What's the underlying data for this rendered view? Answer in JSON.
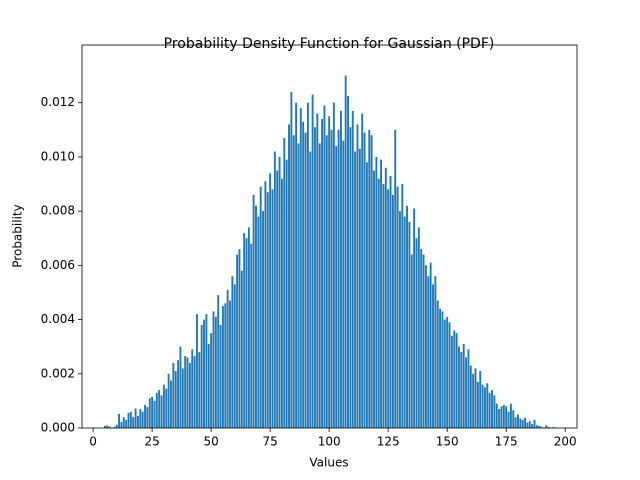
{
  "chart_data": {
    "type": "bar",
    "title": "Probability Density Function for Gaussian (PDF)",
    "x_label": "Values",
    "y_label": "Probability",
    "color": "#1f77b4",
    "x": [
      5,
      6,
      7,
      8,
      9,
      10,
      11,
      12,
      13,
      14,
      15,
      16,
      17,
      18,
      19,
      20,
      21,
      22,
      23,
      24,
      25,
      26,
      27,
      28,
      29,
      30,
      31,
      32,
      33,
      34,
      35,
      36,
      37,
      38,
      39,
      40,
      41,
      42,
      43,
      44,
      45,
      46,
      47,
      48,
      49,
      50,
      51,
      52,
      53,
      54,
      55,
      56,
      57,
      58,
      59,
      60,
      61,
      62,
      63,
      64,
      65,
      66,
      67,
      68,
      69,
      70,
      71,
      72,
      73,
      74,
      75,
      76,
      77,
      78,
      79,
      80,
      81,
      82,
      83,
      84,
      85,
      86,
      87,
      88,
      89,
      90,
      91,
      92,
      93,
      94,
      95,
      96,
      97,
      98,
      99,
      100,
      101,
      102,
      103,
      104,
      105,
      106,
      107,
      108,
      109,
      110,
      111,
      112,
      113,
      114,
      115,
      116,
      117,
      118,
      119,
      120,
      121,
      122,
      123,
      124,
      125,
      126,
      127,
      128,
      129,
      130,
      131,
      132,
      133,
      134,
      135,
      136,
      137,
      138,
      139,
      140,
      141,
      142,
      143,
      144,
      145,
      146,
      147,
      148,
      149,
      150,
      151,
      152,
      153,
      154,
      155,
      156,
      157,
      158,
      159,
      160,
      161,
      162,
      163,
      164,
      165,
      166,
      167,
      168,
      169,
      170,
      171,
      172,
      173,
      174,
      175,
      176,
      177,
      178,
      179,
      180,
      181,
      182,
      183,
      184,
      185,
      186,
      187,
      188,
      189,
      190,
      191,
      192,
      193,
      194,
      195,
      196
    ],
    "values": [
      8e-05,
      0.0001,
      6e-05,
      0,
      4e-05,
      0.00012,
      0.00052,
      0.00022,
      0.0004,
      0.0003,
      0.00055,
      0.0006,
      0.0004,
      0.00072,
      0.00045,
      0.0007,
      0.0006,
      0.00085,
      0.00078,
      0.0011,
      0.00115,
      0.001,
      0.0013,
      0.0014,
      0.0012,
      0.0016,
      0.00145,
      0.002,
      0.00175,
      0.0024,
      0.0021,
      0.0025,
      0.003,
      0.0022,
      0.00265,
      0.0026,
      0.0024,
      0.0029,
      0.00265,
      0.0042,
      0.0028,
      0.0038,
      0.004,
      0.0042,
      0.0031,
      0.0035,
      0.0043,
      0.0041,
      0.0049,
      0.0038,
      0.0045,
      0.0046,
      0.0051,
      0.0047,
      0.0056,
      0.0053,
      0.0064,
      0.0066,
      0.0058,
      0.0072,
      0.007,
      0.0074,
      0.0068,
      0.0086,
      0.0082,
      0.0078,
      0.0089,
      0.008,
      0.0091,
      0.0087,
      0.0094,
      0.0088,
      0.0102,
      0.0095,
      0.01,
      0.0092,
      0.0107,
      0.0099,
      0.0112,
      0.0124,
      0.0108,
      0.012,
      0.0105,
      0.0118,
      0.0113,
      0.0109,
      0.012,
      0.0102,
      0.0123,
      0.0111,
      0.0116,
      0.0105,
      0.0114,
      0.0119,
      0.0108,
      0.0115,
      0.011,
      0.012,
      0.0104,
      0.011,
      0.0117,
      0.0106,
      0.013,
      0.01225,
      0.0111,
      0.0117,
      0.0102,
      0.0112,
      0.0103,
      0.0116,
      0.0109,
      0.0098,
      0.011,
      0.0108,
      0.0095,
      0.01,
      0.0092,
      0.0099,
      0.009,
      0.0096,
      0.0088,
      0.0093,
      0.0086,
      0.011,
      0.0089,
      0.008,
      0.009,
      0.0078,
      0.0082,
      0.0076,
      0.0064,
      0.0081,
      0.007,
      0.0074,
      0.0066,
      0.0064,
      0.006,
      0.0056,
      0.0061,
      0.0053,
      0.0056,
      0.0047,
      0.0044,
      0.0043,
      0.004,
      0.0041,
      0.0039,
      0.0034,
      0.0036,
      0.0035,
      0.003,
      0.0028,
      0.0031,
      0.0026,
      0.0029,
      0.0023,
      0.002,
      0.0022,
      0.0017,
      0.0021,
      0.0016,
      0.0015,
      0.00165,
      0.0013,
      0.0014,
      0.0012,
      0.0009,
      0.0007,
      0.0008,
      0.00085,
      0.0008,
      0.0006,
      0.0009,
      0.00065,
      0.0004,
      0.0005,
      0.00035,
      0.0003,
      0.00038,
      0.0002,
      0.00025,
      0.00015,
      0.0003,
      0.0001,
      8e-05,
      5e-05,
      0,
      0.0001,
      4e-05,
      0,
      3e-05,
      2e-05
    ],
    "xlim": [
      -4.7,
      205
    ],
    "xticks": [
      0,
      25,
      50,
      75,
      100,
      125,
      150,
      175,
      200
    ],
    "ylim": [
      0,
      0.01413
    ],
    "yticks": [
      {
        "value": 0,
        "label": "0.000"
      },
      {
        "value": 0.002,
        "label": "0.002"
      },
      {
        "value": 0.004,
        "label": "0.004"
      },
      {
        "value": 0.006,
        "label": "0.006"
      },
      {
        "value": 0.008,
        "label": "0.008"
      },
      {
        "value": 0.01,
        "label": "0.010"
      },
      {
        "value": 0.012,
        "label": "0.012"
      }
    ]
  }
}
